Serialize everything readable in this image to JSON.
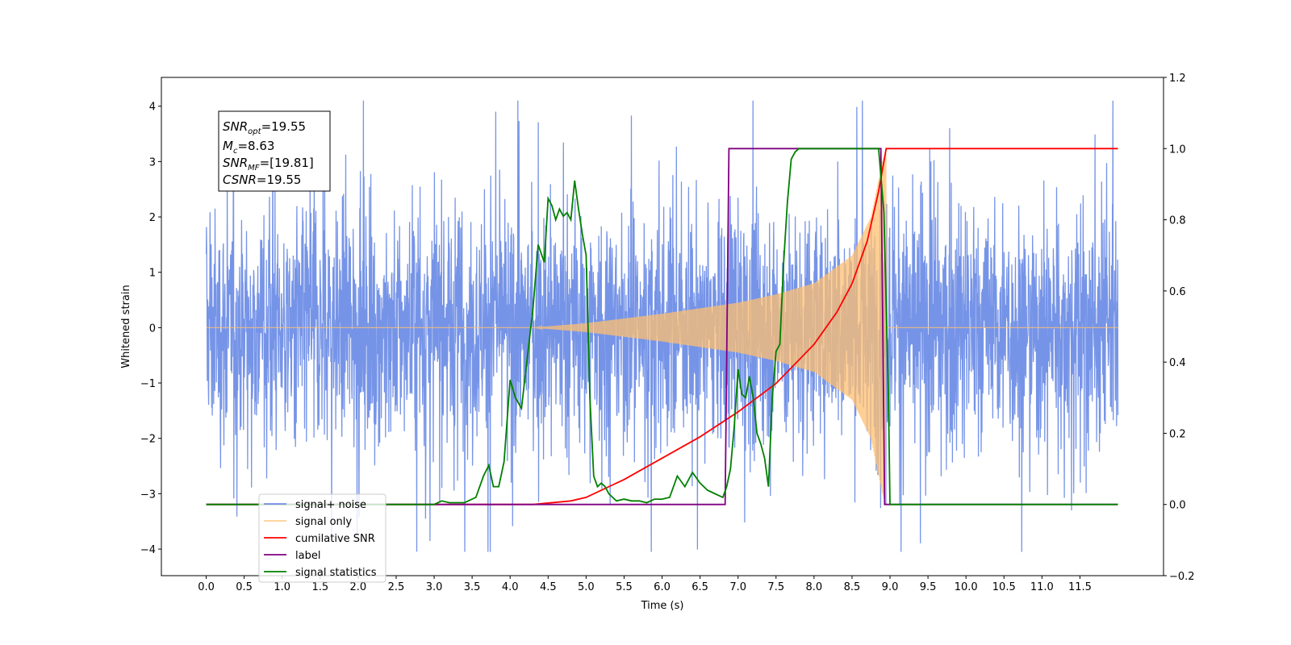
{
  "chart_data": {
    "type": "line",
    "xlabel": "Time (s)",
    "ylabel": "Whitened strain",
    "xlim": [
      -0.59,
      12.6
    ],
    "ylim": [
      -4.48,
      4.52
    ],
    "y2lim": [
      -0.2,
      1.2
    ],
    "x_ticks": [
      "0.0",
      "0.5",
      "1.0",
      "1.5",
      "2.0",
      "2.5",
      "3.0",
      "3.5",
      "4.0",
      "4.5",
      "5.0",
      "5.5",
      "6.0",
      "6.5",
      "7.0",
      "7.5",
      "8.0",
      "8.5",
      "9.0",
      "9.5",
      "10.0",
      "10.5",
      "11.0",
      "11.5"
    ],
    "y_ticks": [
      "−4",
      "−3",
      "−2",
      "−1",
      "0",
      "1",
      "2",
      "3",
      "4"
    ],
    "y2_ticks": [
      "−0.2",
      "0.0",
      "0.2",
      "0.4",
      "0.6",
      "0.8",
      "1.0",
      "1.2"
    ],
    "legend_position": "lower-left",
    "info_box": {
      "snr_opt_base": "SNR",
      "snr_opt_sub": "opt",
      "snr_opt_value": "=19.55",
      "mc_base": "M",
      "mc_sub": "c",
      "mc_value": "=8.63",
      "snr_mf_base": "SNR",
      "snr_mf_sub": "MF",
      "snr_mf_value": "=[19.81]",
      "csnr_base": "CSNR",
      "csnr_value": "=19.55"
    },
    "series": [
      {
        "name": "signal+ noise",
        "color": "#6f8ee6",
        "axis": "left",
        "kind": "noise",
        "x_range": [
          0,
          12.0
        ],
        "amplitude": "±2.5 typical, extremes 4.1 / -4.0"
      },
      {
        "name": "signal only",
        "color": "#ffbf70",
        "axis": "left",
        "kind": "chirp",
        "x_range": [
          0,
          12.0
        ],
        "merger_time": 8.95,
        "envelope": {
          "x": [
            4.3,
            5.0,
            6.0,
            7.0,
            7.5,
            8.0,
            8.5,
            8.75,
            8.9,
            8.95
          ],
          "y": [
            0.0,
            0.08,
            0.25,
            0.45,
            0.6,
            0.8,
            1.3,
            2.0,
            3.0,
            3.2
          ]
        }
      },
      {
        "name": "cumilative SNR",
        "color": "#ff0000",
        "axis": "right",
        "x": [
          0,
          4.3,
          4.8,
          5.0,
          5.5,
          6.0,
          6.5,
          7.0,
          7.5,
          8.0,
          8.3,
          8.5,
          8.7,
          8.85,
          8.95,
          12.0
        ],
        "y": [
          0,
          0,
          0.01,
          0.02,
          0.07,
          0.13,
          0.19,
          0.26,
          0.34,
          0.45,
          0.54,
          0.62,
          0.74,
          0.88,
          1.0,
          1.0
        ]
      },
      {
        "name": "label",
        "color": "#800080",
        "axis": "right",
        "x": [
          0,
          6.83,
          6.88,
          8.88,
          8.93,
          12.0
        ],
        "y": [
          0,
          0,
          1.0,
          1.0,
          0,
          0
        ]
      },
      {
        "name": "signal statistics",
        "color": "#008000",
        "axis": "right",
        "x": [
          0,
          3.0,
          3.1,
          3.2,
          3.4,
          3.55,
          3.65,
          3.72,
          3.78,
          3.85,
          3.92,
          4.0,
          4.07,
          4.15,
          4.22,
          4.3,
          4.37,
          4.45,
          4.5,
          4.55,
          4.6,
          4.65,
          4.7,
          4.75,
          4.8,
          4.85,
          4.9,
          4.95,
          5.0,
          5.05,
          5.1,
          5.15,
          5.2,
          5.25,
          5.3,
          5.4,
          5.5,
          5.6,
          5.7,
          5.8,
          5.9,
          6.0,
          6.1,
          6.2,
          6.3,
          6.4,
          6.5,
          6.6,
          6.7,
          6.8,
          6.85,
          6.9,
          6.95,
          7.0,
          7.05,
          7.1,
          7.15,
          7.2,
          7.25,
          7.3,
          7.35,
          7.4,
          7.45,
          7.5,
          7.55,
          7.6,
          7.65,
          7.7,
          7.75,
          7.8,
          7.85,
          7.9,
          8.0,
          8.5,
          8.85,
          8.92,
          8.98,
          9.0,
          12.0
        ],
        "y": [
          0,
          0,
          0.01,
          0.005,
          0.005,
          0.02,
          0.08,
          0.11,
          0.05,
          0.05,
          0.12,
          0.35,
          0.3,
          0.27,
          0.4,
          0.55,
          0.73,
          0.68,
          0.86,
          0.84,
          0.8,
          0.83,
          0.81,
          0.82,
          0.8,
          0.91,
          0.83,
          0.76,
          0.7,
          0.3,
          0.08,
          0.05,
          0.06,
          0.05,
          0.03,
          0.01,
          0.015,
          0.01,
          0.01,
          0.005,
          0.015,
          0.015,
          0.02,
          0.08,
          0.05,
          0.09,
          0.06,
          0.04,
          0.03,
          0.02,
          0.05,
          0.1,
          0.22,
          0.38,
          0.31,
          0.3,
          0.36,
          0.3,
          0.2,
          0.17,
          0.13,
          0.05,
          0.3,
          0.43,
          0.45,
          0.68,
          0.85,
          0.97,
          0.99,
          1.0,
          1.0,
          1.0,
          1.0,
          1.0,
          1.0,
          0.82,
          0.3,
          0.0,
          0.0
        ]
      }
    ]
  }
}
